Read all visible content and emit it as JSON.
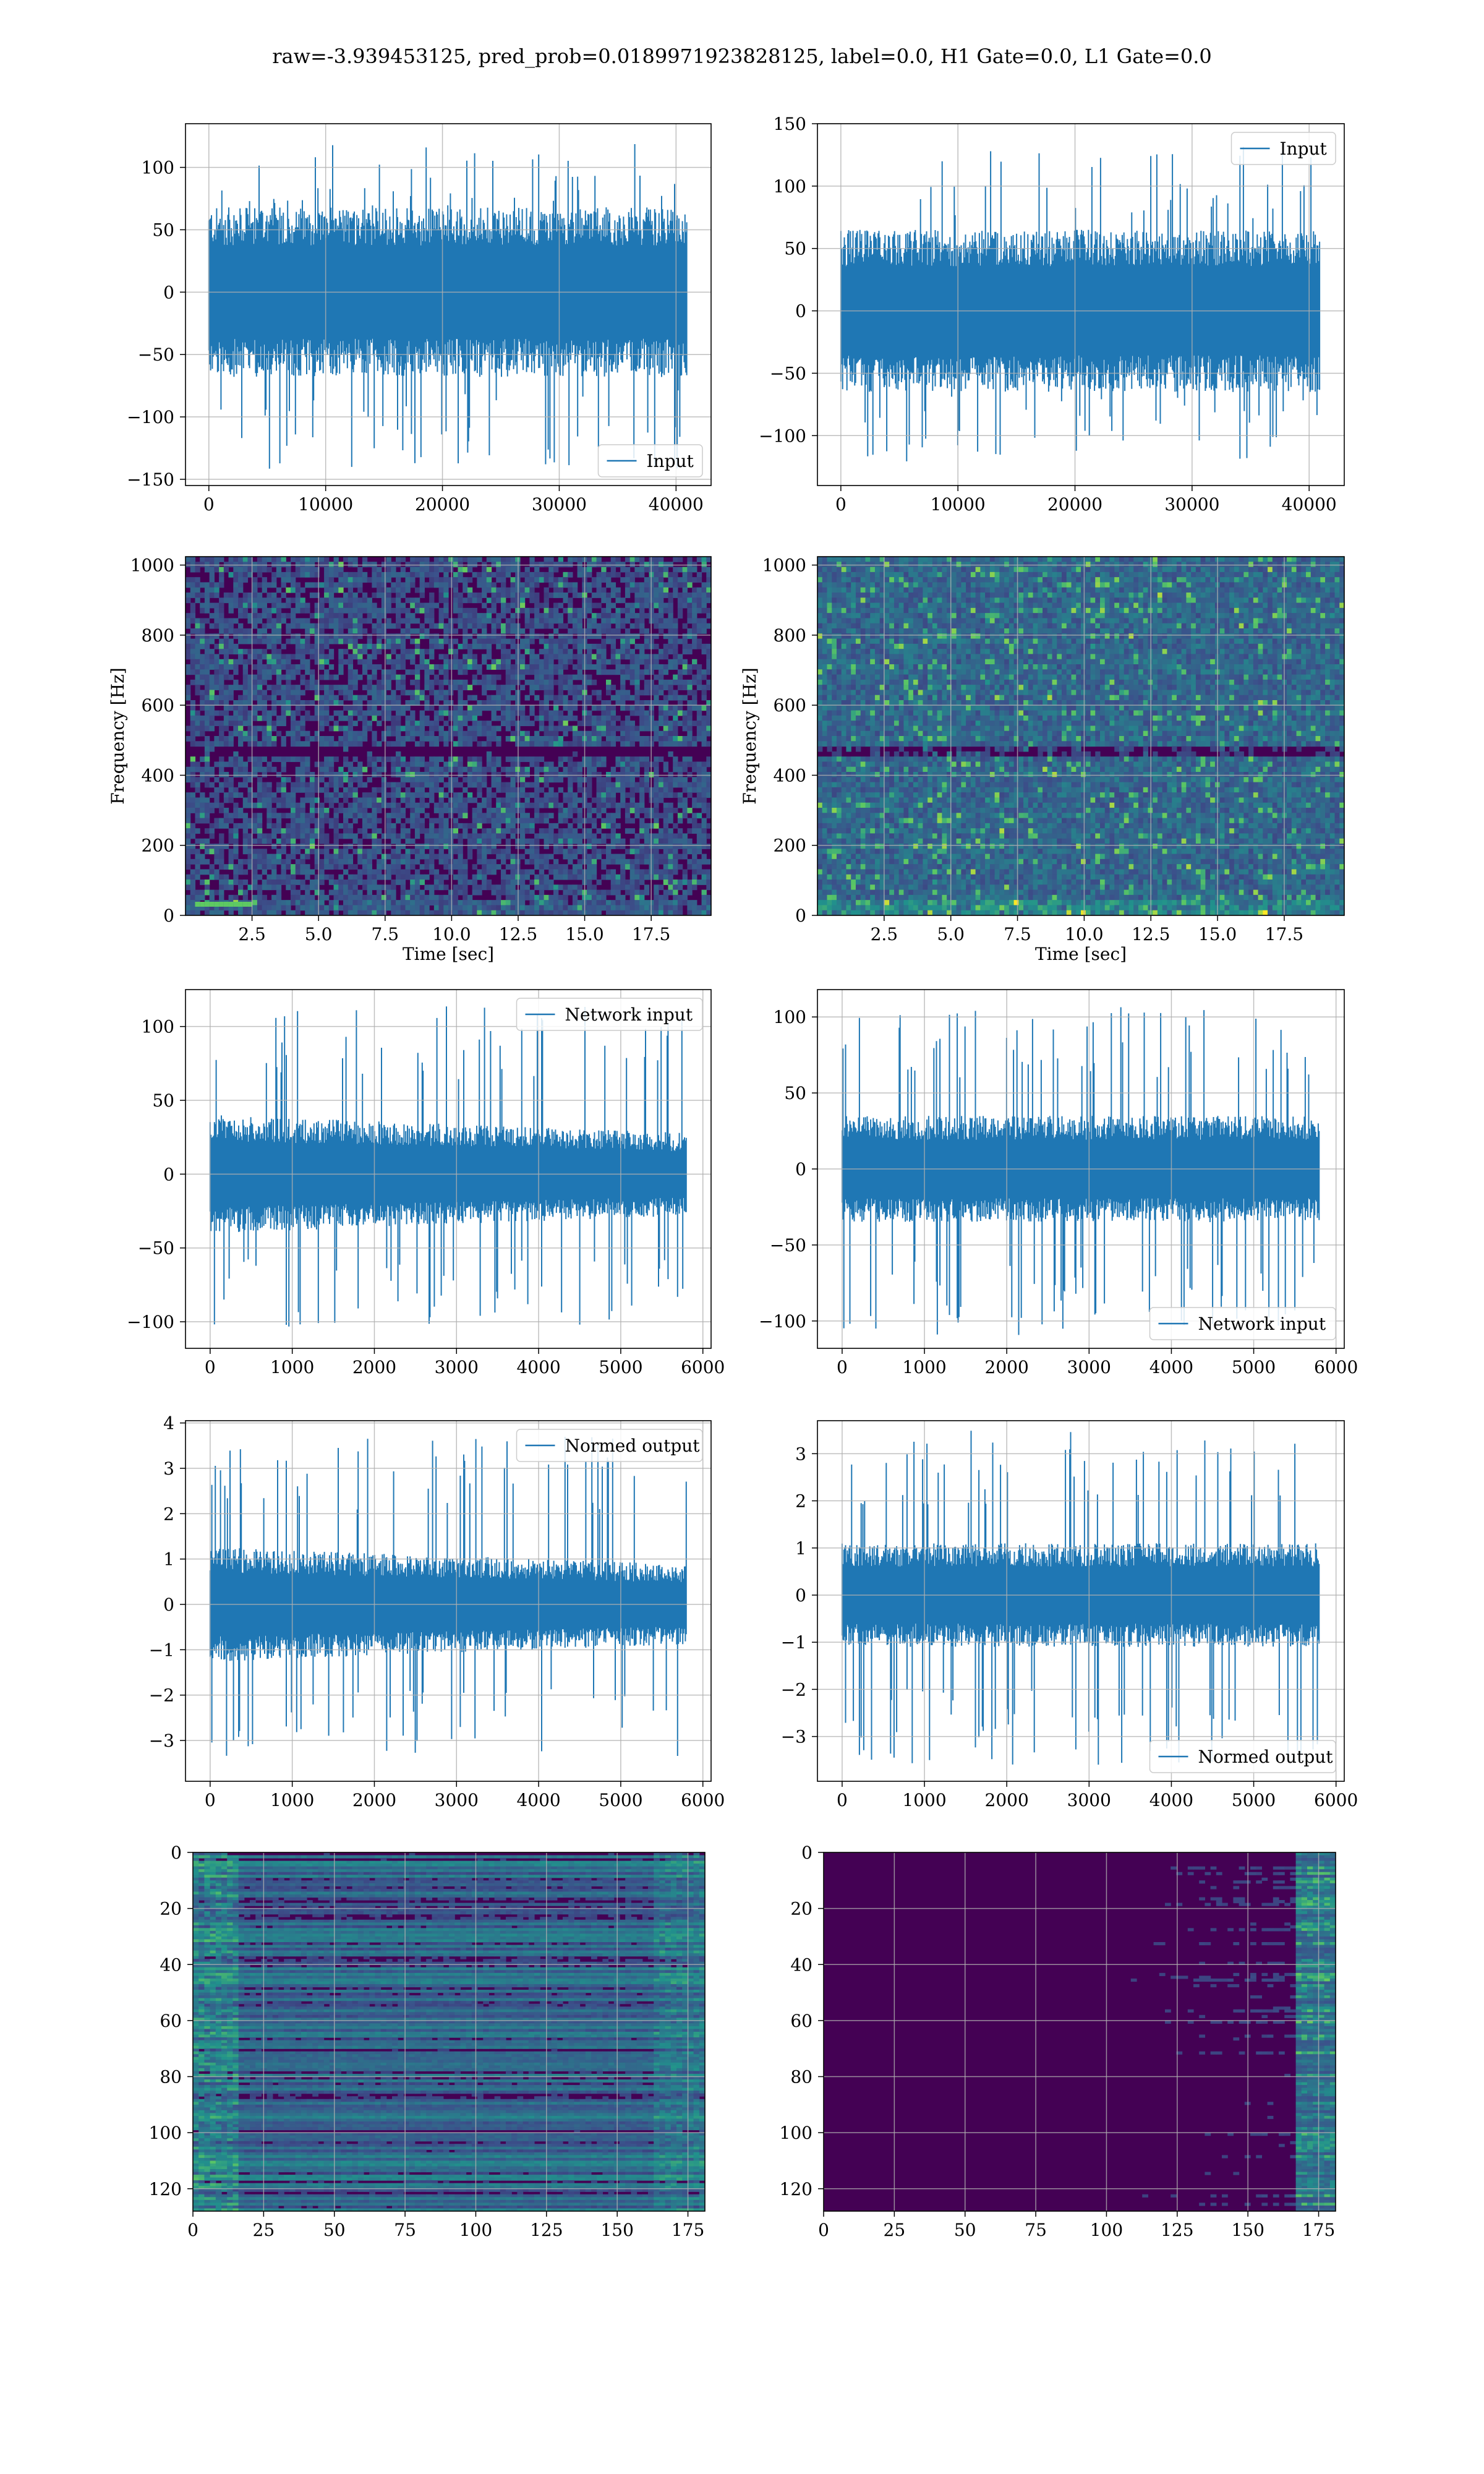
{
  "title": "raw=-3.939453125, pred_prob=0.0189971923828125, label=0.0, H1 Gate=0.0, L1 Gate=0.0",
  "colors": {
    "line": "#1f77b4",
    "grid": "#b0b0b0",
    "viridis_dark": "#440154",
    "viridis_mid": "#21918c",
    "viridis_bright": "#fde725"
  },
  "chart_data": [
    {
      "id": "p1",
      "type": "line",
      "series": [
        {
          "name": "Input"
        }
      ],
      "legend": "lower-right",
      "grid": true,
      "xlim": [
        -2000,
        43000
      ],
      "ylim": [
        -155,
        135
      ],
      "xticks": [
        0,
        10000,
        20000,
        30000,
        40000
      ],
      "yticks": [
        -150,
        -100,
        -50,
        0,
        50,
        100
      ],
      "n": 40960,
      "band": [
        -68,
        68
      ],
      "spike_max": 120,
      "spike_min": -142
    },
    {
      "id": "p2",
      "type": "line",
      "series": [
        {
          "name": "Input"
        }
      ],
      "legend": "upper-right",
      "grid": true,
      "xlim": [
        -2000,
        43000
      ],
      "ylim": [
        -140,
        150
      ],
      "xticks": [
        0,
        10000,
        20000,
        30000,
        40000
      ],
      "yticks": [
        -100,
        -50,
        0,
        50,
        100,
        150
      ],
      "n": 40960,
      "band": [
        -65,
        65
      ],
      "spike_max": 133,
      "spike_min": -123
    },
    {
      "id": "p3",
      "type": "heatmap",
      "xlabel": "Time [sec]",
      "ylabel": "Frequency [Hz]",
      "grid": true,
      "xlim": [
        0,
        19.75
      ],
      "ylim": [
        0,
        1024
      ],
      "xticks": [
        "2.5",
        "5.0",
        "7.5",
        "10.0",
        "12.5",
        "15.0",
        "17.5"
      ],
      "yticks": [
        0,
        200,
        400,
        600,
        800,
        1000
      ]
    },
    {
      "id": "p4",
      "type": "heatmap",
      "xlabel": "Time [sec]",
      "ylabel": "Frequency [Hz]",
      "grid": true,
      "xlim": [
        0,
        19.75
      ],
      "ylim": [
        0,
        1024
      ],
      "xticks": [
        "2.5",
        "5.0",
        "7.5",
        "10.0",
        "12.5",
        "15.0",
        "17.5"
      ],
      "yticks": [
        0,
        200,
        400,
        600,
        800,
        1000
      ]
    },
    {
      "id": "p5",
      "type": "line",
      "series": [
        {
          "name": "Network input"
        }
      ],
      "legend": "upper-right",
      "grid": true,
      "xlim": [
        -300,
        6100
      ],
      "ylim": [
        -118,
        125
      ],
      "xticks": [
        0,
        1000,
        2000,
        3000,
        4000,
        5000,
        6000
      ],
      "yticks": [
        -100,
        -50,
        0,
        50,
        100
      ],
      "n": 5800,
      "band": [
        -35,
        35
      ],
      "spike_max": 115,
      "spike_min": -105
    },
    {
      "id": "p6",
      "type": "line",
      "series": [
        {
          "name": "Network input"
        }
      ],
      "legend": "lower-right",
      "grid": true,
      "xlim": [
        -300,
        6100
      ],
      "ylim": [
        -118,
        118
      ],
      "xticks": [
        0,
        1000,
        2000,
        3000,
        4000,
        5000,
        6000
      ],
      "yticks": [
        -100,
        -50,
        0,
        50,
        100
      ],
      "n": 5800,
      "band": [
        -35,
        35
      ],
      "spike_max": 107,
      "spike_min": -110
    },
    {
      "id": "p7",
      "type": "line",
      "series": [
        {
          "name": "Normed output"
        }
      ],
      "legend": "upper-right",
      "grid": true,
      "xlim": [
        -300,
        6100
      ],
      "ylim": [
        -3.9,
        4.05
      ],
      "xticks": [
        0,
        1000,
        2000,
        3000,
        4000,
        5000,
        6000
      ],
      "yticks": [
        -3,
        -2,
        -1,
        0,
        1,
        2,
        3,
        4
      ],
      "n": 5800,
      "band": [
        -1.1,
        1.1
      ],
      "spike_max": 3.7,
      "spike_min": -3.4
    },
    {
      "id": "p8",
      "type": "line",
      "series": [
        {
          "name": "Normed output"
        }
      ],
      "legend": "lower-right",
      "grid": true,
      "xlim": [
        -300,
        6100
      ],
      "ylim": [
        -3.95,
        3.7
      ],
      "xticks": [
        0,
        1000,
        2000,
        3000,
        4000,
        5000,
        6000
      ],
      "yticks": [
        -3,
        -2,
        -1,
        0,
        1,
        2,
        3
      ],
      "n": 5800,
      "band": [
        -1.1,
        1.1
      ],
      "spike_max": 3.5,
      "spike_min": -3.6
    },
    {
      "id": "p9",
      "type": "heatmap",
      "grid": true,
      "xlim": [
        0,
        181
      ],
      "ylim": [
        128,
        0
      ],
      "xticks": [
        0,
        25,
        50,
        75,
        100,
        125,
        150,
        175
      ],
      "yticks": [
        0,
        20,
        40,
        60,
        80,
        100,
        120
      ]
    },
    {
      "id": "p10",
      "type": "heatmap",
      "grid": true,
      "xlim": [
        0,
        181
      ],
      "ylim": [
        128,
        0
      ],
      "xticks": [
        0,
        25,
        50,
        75,
        100,
        125,
        150,
        175
      ],
      "yticks": [
        0,
        20,
        40,
        60,
        80,
        100,
        120
      ]
    }
  ]
}
